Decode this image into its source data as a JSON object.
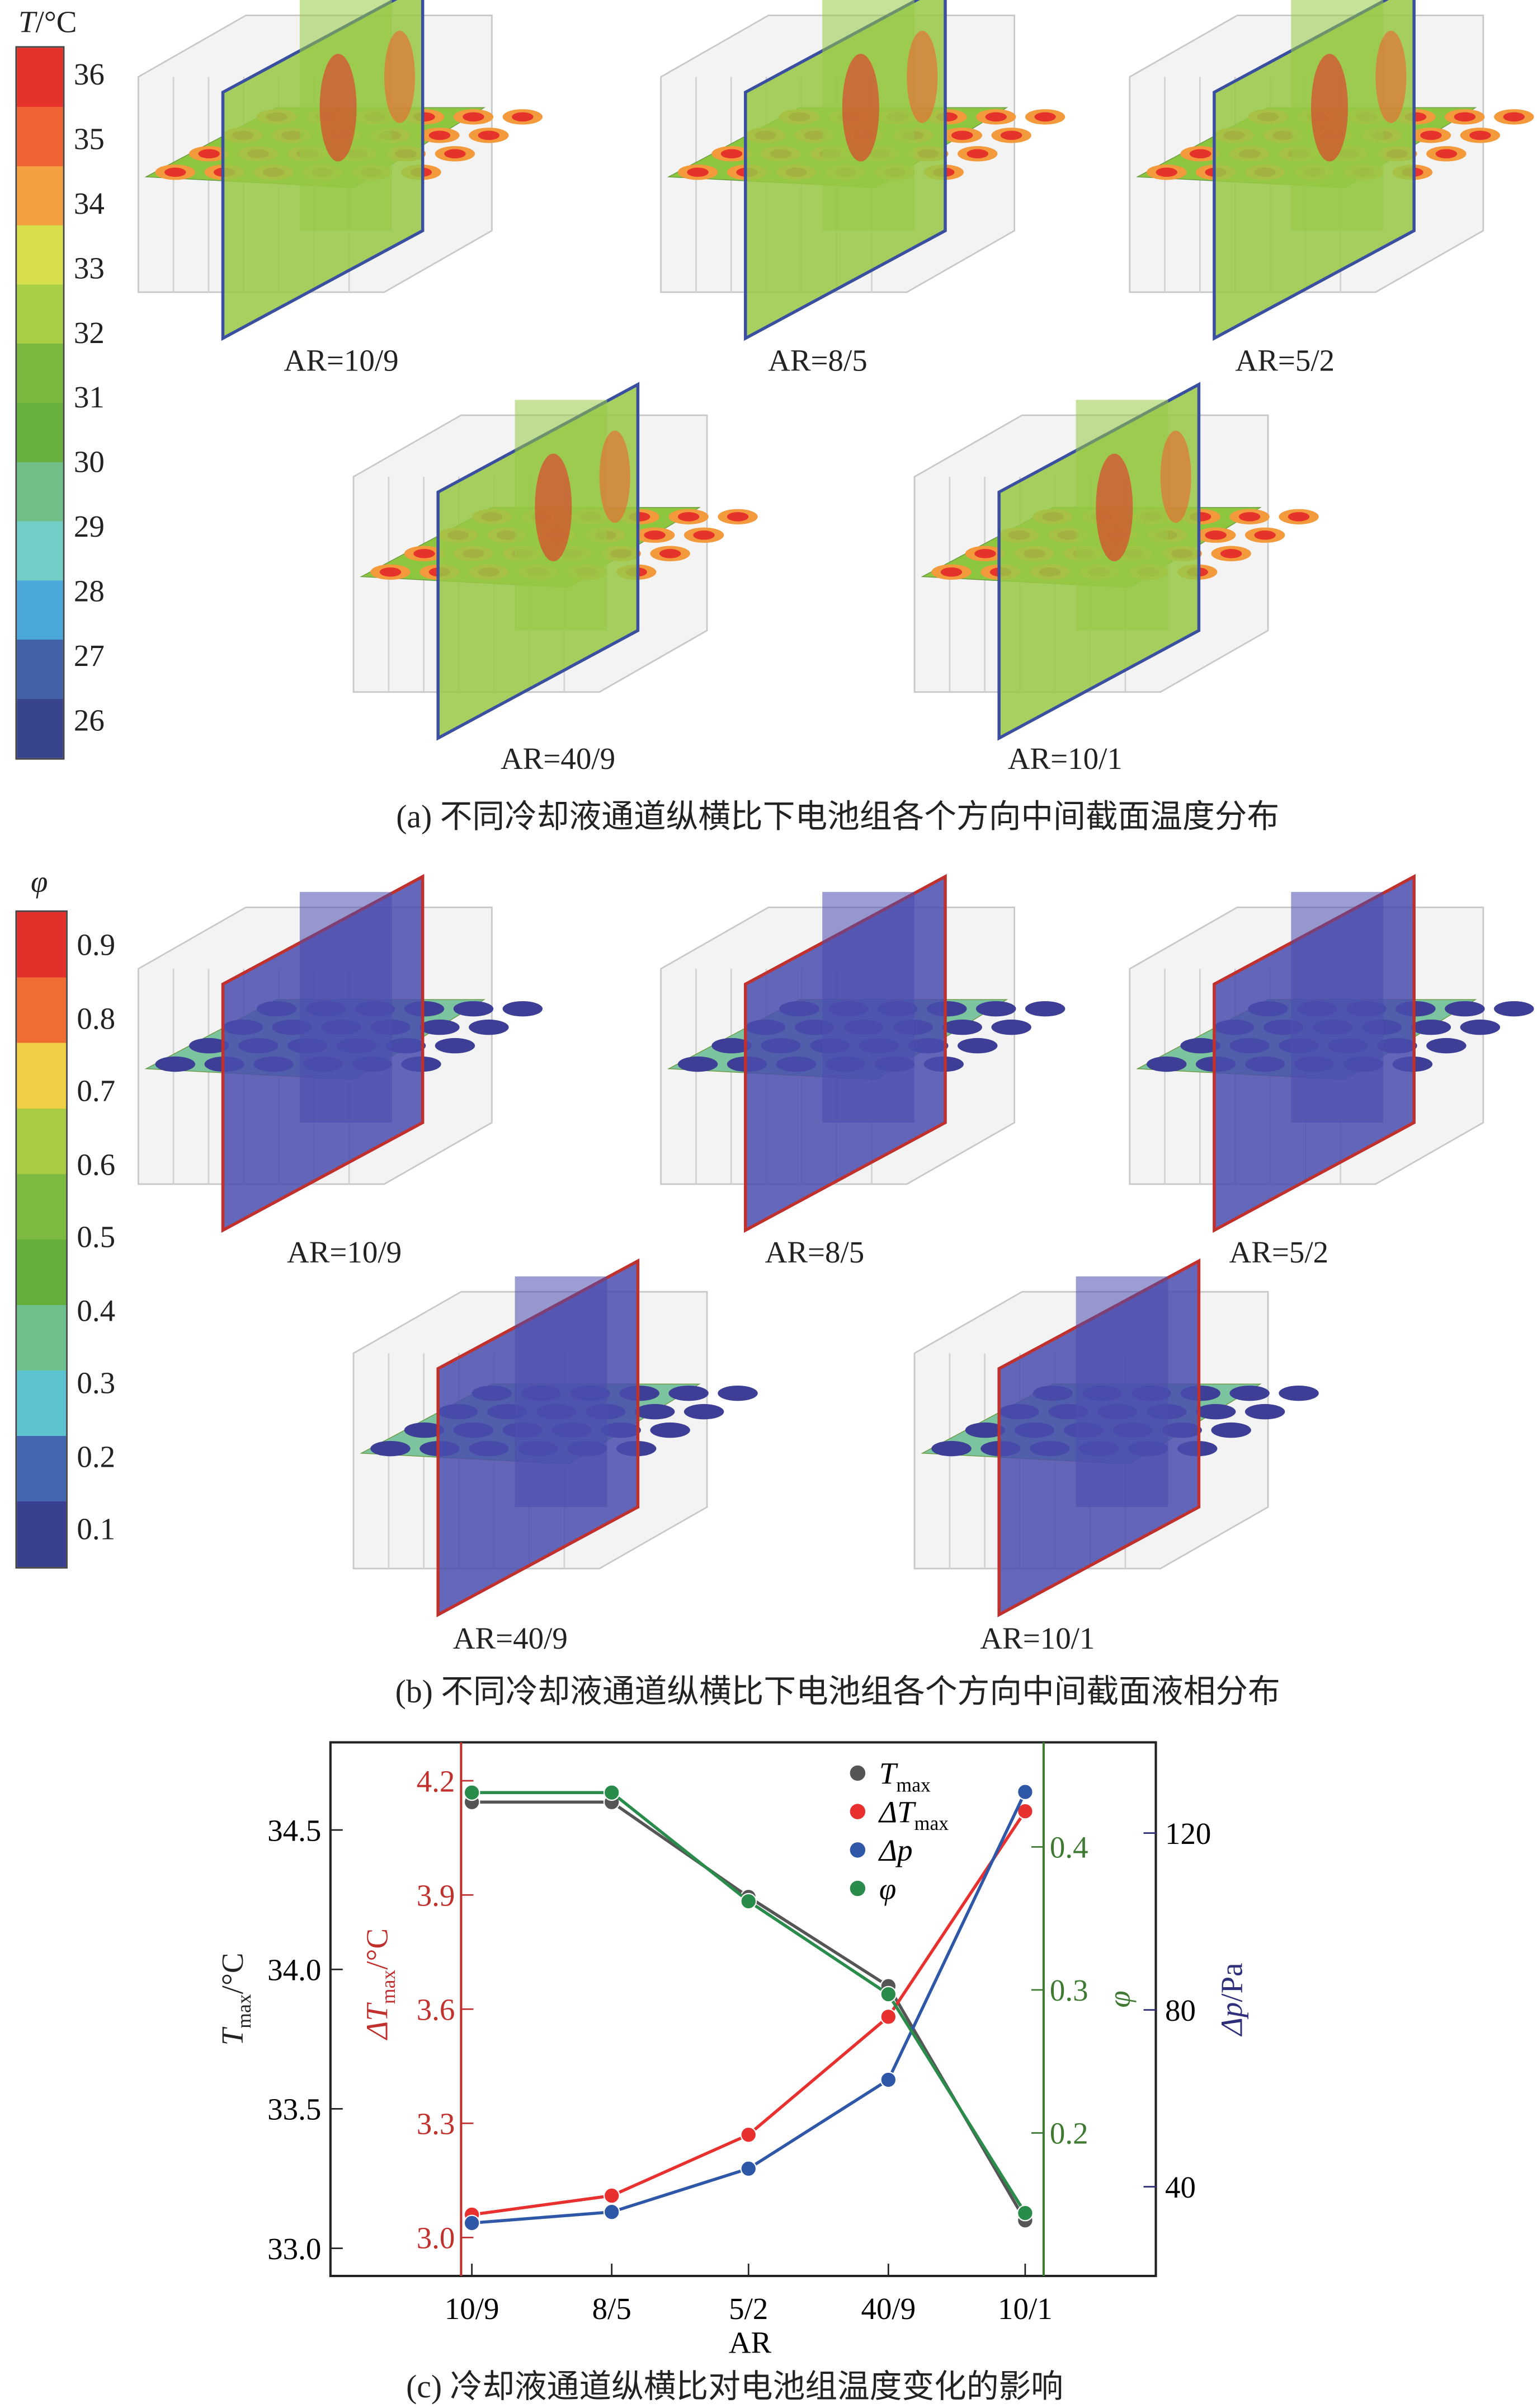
{
  "panel_a": {
    "colorbar": {
      "title_var": "T",
      "title_unit": "/°C",
      "labels": [
        "36",
        "35",
        "34",
        "33",
        "32",
        "31",
        "30",
        "29",
        "28",
        "27",
        "26"
      ],
      "colors": [
        "#e5322b",
        "#ee6234",
        "#f3a040",
        "#d8df4c",
        "#a9cf46",
        "#79b83f",
        "#68b03d",
        "#72be88",
        "#72cdc6",
        "#4ba6da",
        "#4261a9",
        "#39448f"
      ]
    },
    "labels": [
      "AR=10/9",
      "AR=8/5",
      "AR=5/2",
      "AR=40/9",
      "AR=10/1"
    ],
    "caption": "(a) 不同冷却液通道纵横比下电池组各个方向中间截面温度分布"
  },
  "panel_b": {
    "colorbar": {
      "title_var": "φ",
      "labels": [
        "0.9",
        "0.8",
        "0.7",
        "0.6",
        "0.5",
        "0.4",
        "0.3",
        "0.2",
        "0.1"
      ],
      "colors": [
        "#e3302b",
        "#ef6c33",
        "#f1cf45",
        "#a8cb43",
        "#7dbb40",
        "#64ae3c",
        "#6ebf8c",
        "#5cc3cf",
        "#4466b0",
        "#39408f"
      ]
    },
    "labels": [
      "AR=10/9",
      "AR=8/5",
      "AR=5/2",
      "AR=40/9",
      "AR=10/1"
    ],
    "caption": "(b) 不同冷却液通道纵横比下电池组各个方向中间截面液相分布"
  },
  "chart_data": {
    "type": "line",
    "xlabel": "AR",
    "categories": [
      "10/9",
      "8/5",
      "5/2",
      "40/9",
      "10/1"
    ],
    "caption": "(c) 冷却液通道纵横比对电池组温度变化的影响",
    "axes": {
      "tmax": {
        "label_var": "T",
        "label_sub": "max",
        "label_unit": "/°C",
        "ticks": [
          "34.5",
          "34.0",
          "33.5",
          "33.0"
        ],
        "range": [
          32.9,
          34.85
        ],
        "color": "#222222"
      },
      "dtmax": {
        "label_var": "ΔT",
        "label_sub": "max",
        "label_unit": "/°C",
        "ticks": [
          "4.2",
          "3.9",
          "3.6",
          "3.3",
          "3.0"
        ],
        "range": [
          2.97,
          4.28
        ],
        "color": "#c0302c"
      },
      "phi": {
        "label_var": "φ",
        "ticks": [
          "0.4",
          "0.3",
          "0.2"
        ],
        "range": [
          0.12,
          0.47
        ],
        "color": "#3f7a33"
      },
      "dp": {
        "label_var": "Δp",
        "label_unit": "/Pa",
        "ticks": [
          "120",
          "80",
          "40"
        ],
        "range": [
          22,
          136
        ],
        "color": "#2e2f7a"
      }
    },
    "series": [
      {
        "name": "Tmax",
        "name_var": "T",
        "name_sub": "max",
        "axis": "tmax",
        "color": "#555555",
        "values": [
          34.6,
          34.6,
          34.26,
          33.94,
          33.1
        ]
      },
      {
        "name": "ΔTmax",
        "name_var": "ΔT",
        "name_sub": "max",
        "axis": "dtmax",
        "color": "#e8302f",
        "values": [
          3.06,
          3.11,
          3.27,
          3.58,
          4.12
        ]
      },
      {
        "name": "Δp",
        "name_var": "Δp",
        "name_sub": "",
        "axis": "dp",
        "color": "#2f57a8",
        "values": [
          31.8,
          34.3,
          44.1,
          64.2,
          129.3
        ]
      },
      {
        "name": "φ",
        "name_var": "φ",
        "name_sub": "",
        "axis": "phi",
        "color": "#2a8c4a",
        "values": [
          0.438,
          0.438,
          0.362,
          0.297,
          0.144
        ]
      }
    ],
    "legend": "top-right"
  }
}
